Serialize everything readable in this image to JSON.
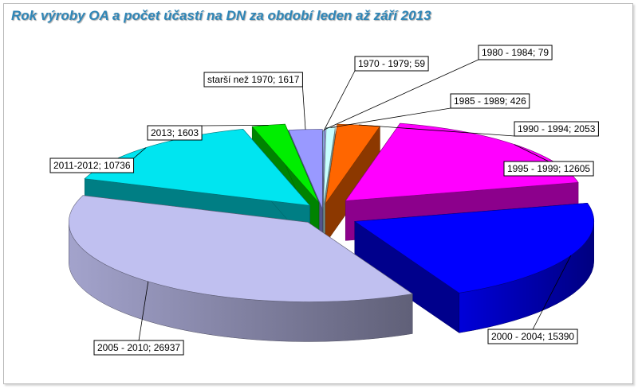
{
  "chart_data": {
    "type": "pie",
    "title": "Rok výroby  OA a počet účastí na DN za období leden až září 2013",
    "slices": [
      {
        "label": "1970 - 1979",
        "value": 59,
        "color": "#99ccff",
        "text": "1970 - 1979; 59"
      },
      {
        "label": "1980 - 1984",
        "value": 79,
        "color": "#b0b0ff",
        "text": "1980 - 1984; 79"
      },
      {
        "label": "1985 - 1989",
        "value": 426,
        "color": "#c8ffff",
        "text": "1985 - 1989; 426"
      },
      {
        "label": "1990 - 1994",
        "value": 2053,
        "color": "#ff6600",
        "text": "1990 - 1994; 2053"
      },
      {
        "label": "1995 - 1999",
        "value": 12605,
        "color": "#ff00ff",
        "text": "1995 - 1999; 12605"
      },
      {
        "label": "2000 - 2004",
        "value": 15390,
        "color": "#0000ff",
        "text": "2000 - 2004; 15390"
      },
      {
        "label": "2005 - 2010",
        "value": 26937,
        "color": "#c0c0f0",
        "text": "2005 - 2010; 26937"
      },
      {
        "label": "2011-2012",
        "value": 10736,
        "color": "#00e5f0",
        "text": "2011-2012; 10736"
      },
      {
        "label": "2013",
        "value": 1603,
        "color": "#00ee00",
        "text": "2013; 1603"
      },
      {
        "label": "starší než 1970",
        "value": 1617,
        "color": "#9999ff",
        "text": "starší než 1970; 1617"
      }
    ],
    "legend": "none",
    "style": "3d-exploded-pie"
  }
}
